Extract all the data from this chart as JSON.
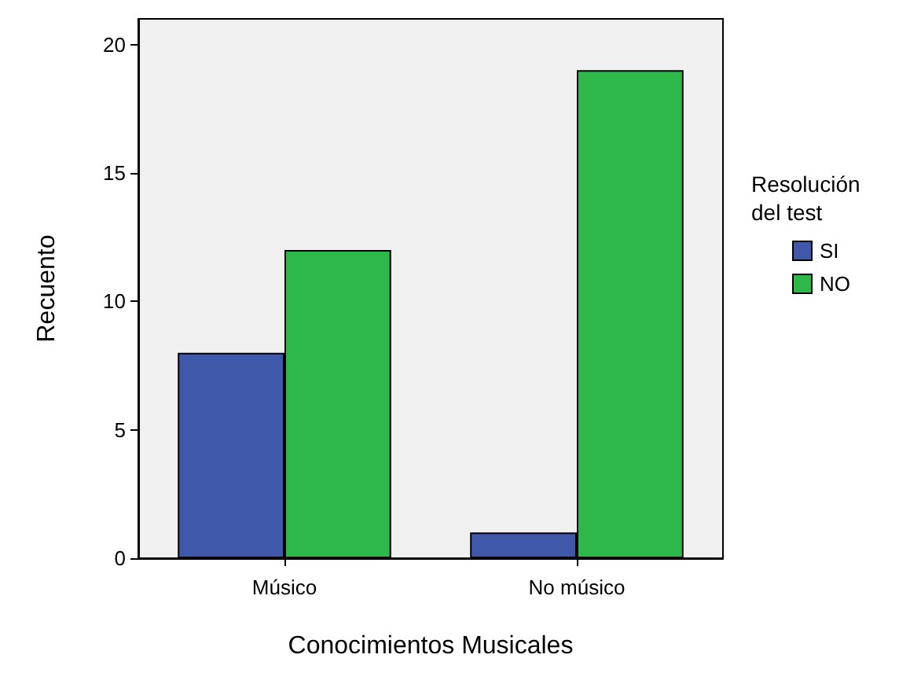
{
  "chart_data": {
    "type": "bar",
    "xlabel": "Conocimientos Musicales",
    "ylabel": "Recuento",
    "legend_title": "Resolución del test",
    "categories": [
      "Músico",
      "No músico"
    ],
    "series": [
      {
        "name": "SI",
        "color": "#3f58a9",
        "values": [
          8,
          1
        ]
      },
      {
        "name": "NO",
        "color": "#2fb84a",
        "values": [
          12,
          19
        ]
      }
    ],
    "ylim": [
      0,
      21
    ],
    "yticks": [
      0,
      5,
      10,
      15,
      20
    ],
    "grid": false,
    "legend": "right"
  }
}
